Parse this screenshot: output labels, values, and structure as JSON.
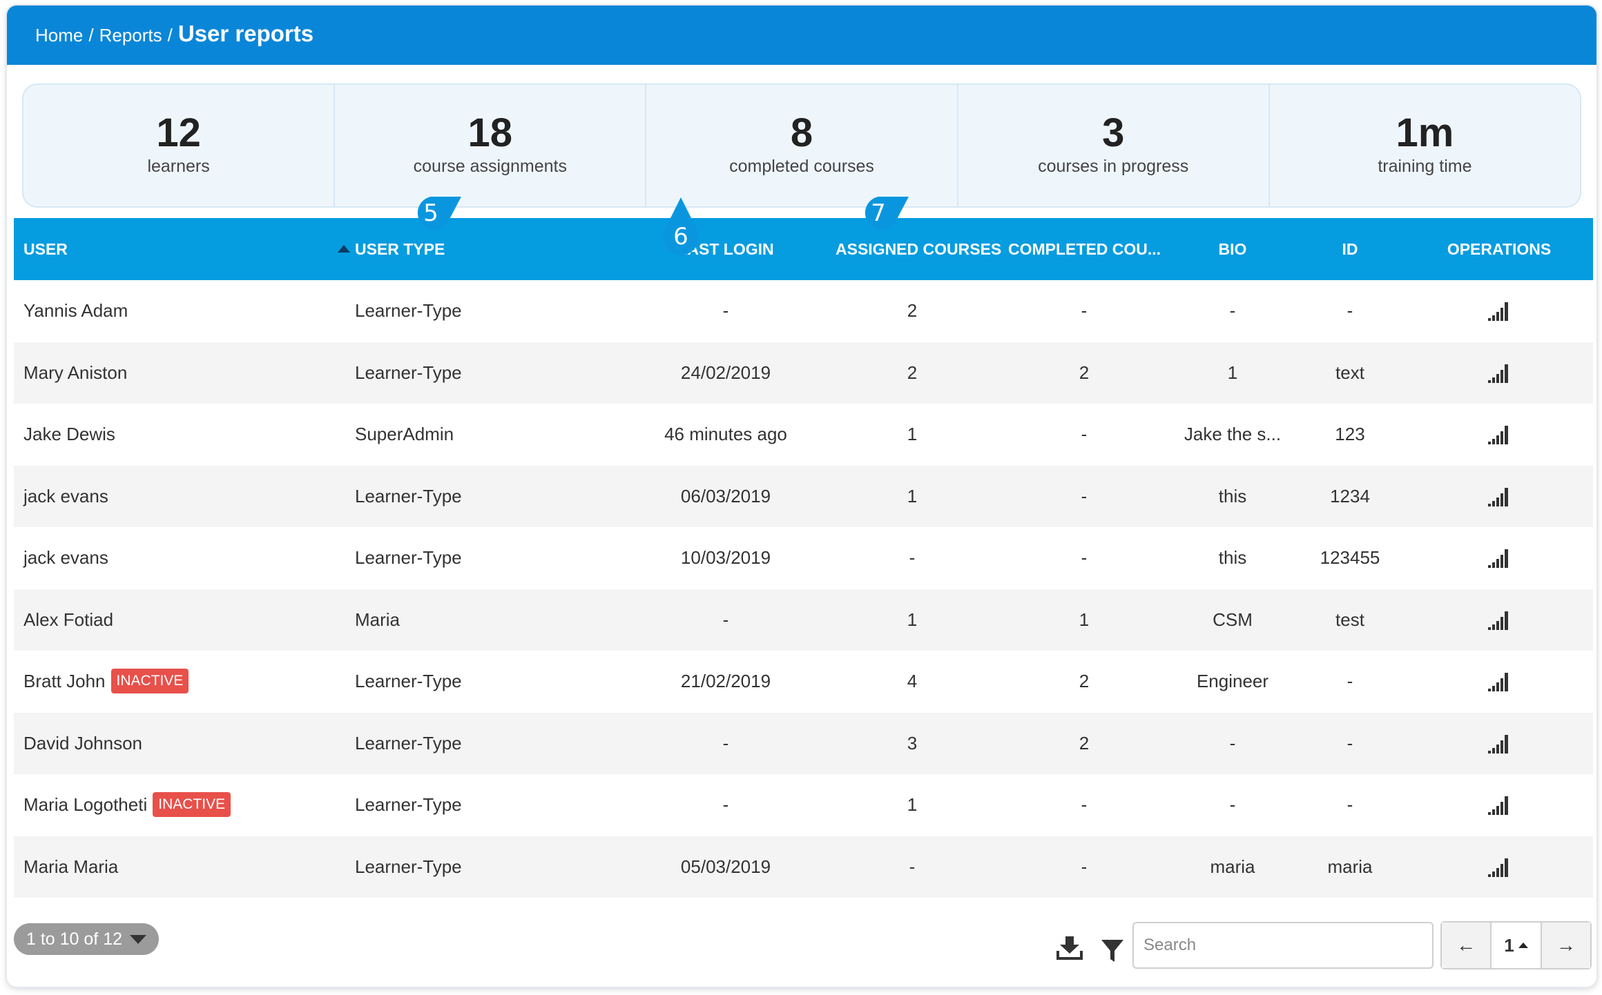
{
  "breadcrumb": {
    "home": "Home",
    "reports": "Reports",
    "current": "User reports",
    "separator": "/"
  },
  "stats": [
    {
      "value": "12",
      "label": "learners"
    },
    {
      "value": "18",
      "label": "course assignments"
    },
    {
      "value": "8",
      "label": "completed courses"
    },
    {
      "value": "3",
      "label": "courses in progress"
    },
    {
      "value": "1m",
      "label": "training time"
    }
  ],
  "table": {
    "headers": {
      "user": "USER",
      "user_type": "USER TYPE",
      "last_login": "LAST LOGIN",
      "assigned_courses": "ASSIGNED COURSES",
      "completed_courses": "COMPLETED COU...",
      "bio": "BIO",
      "id": "ID",
      "operations": "OPERATIONS"
    },
    "rows": [
      {
        "user": "Yannis Adam",
        "badge": "",
        "user_type": "Learner-Type",
        "last_login": "-",
        "assigned": "2",
        "completed": "-",
        "bio": "-",
        "id": "-"
      },
      {
        "user": "Mary Aniston",
        "badge": "",
        "user_type": "Learner-Type",
        "last_login": "24/02/2019",
        "assigned": "2",
        "completed": "2",
        "bio": "1",
        "id": "text"
      },
      {
        "user": "Jake Dewis",
        "badge": "",
        "user_type": "SuperAdmin",
        "last_login": "46 minutes ago",
        "assigned": "1",
        "completed": "-",
        "bio": "Jake the s...",
        "id": "123"
      },
      {
        "user": "jack evans",
        "badge": "",
        "user_type": "Learner-Type",
        "last_login": "06/03/2019",
        "assigned": "1",
        "completed": "-",
        "bio": "this",
        "id": "1234"
      },
      {
        "user": "jack evans",
        "badge": "",
        "user_type": "Learner-Type",
        "last_login": "10/03/2019",
        "assigned": "-",
        "completed": "-",
        "bio": "this",
        "id": "123455"
      },
      {
        "user": "Alex Fotiad",
        "badge": "",
        "user_type": "Maria",
        "last_login": "-",
        "assigned": "1",
        "completed": "1",
        "bio": "CSM",
        "id": "test"
      },
      {
        "user": "Bratt John",
        "badge": "INACTIVE",
        "user_type": "Learner-Type",
        "last_login": "21/02/2019",
        "assigned": "4",
        "completed": "2",
        "bio": "Engineer",
        "id": "-"
      },
      {
        "user": "David Johnson",
        "badge": "",
        "user_type": "Learner-Type",
        "last_login": "-",
        "assigned": "3",
        "completed": "2",
        "bio": "-",
        "id": "-"
      },
      {
        "user": "Maria Logotheti",
        "badge": "INACTIVE",
        "user_type": "Learner-Type",
        "last_login": "-",
        "assigned": "1",
        "completed": "-",
        "bio": "-",
        "id": "-"
      },
      {
        "user": "Maria Maria",
        "badge": "",
        "user_type": "Learner-Type",
        "last_login": "05/03/2019",
        "assigned": "-",
        "completed": "-",
        "bio": "maria",
        "id": "maria"
      }
    ],
    "operations_icon": "bar-chart-icon",
    "sort": {
      "column": "user_type",
      "direction": "ascending"
    }
  },
  "markers": [
    {
      "label": "5"
    },
    {
      "label": "6"
    },
    {
      "label": "7"
    }
  ],
  "footer": {
    "range_text": "1 to 10 of 12",
    "download_icon": "download-icon",
    "filter_icon": "filter-icon",
    "search_placeholder": "Search",
    "pagination": {
      "prev": "←",
      "current": "1",
      "next": "→"
    }
  },
  "colors": {
    "header_bar": "#0a86d8",
    "table_header": "#069ce0",
    "marker": "#0a96df",
    "badge": "#e8504a",
    "stats_bg": "#eef6fc"
  }
}
